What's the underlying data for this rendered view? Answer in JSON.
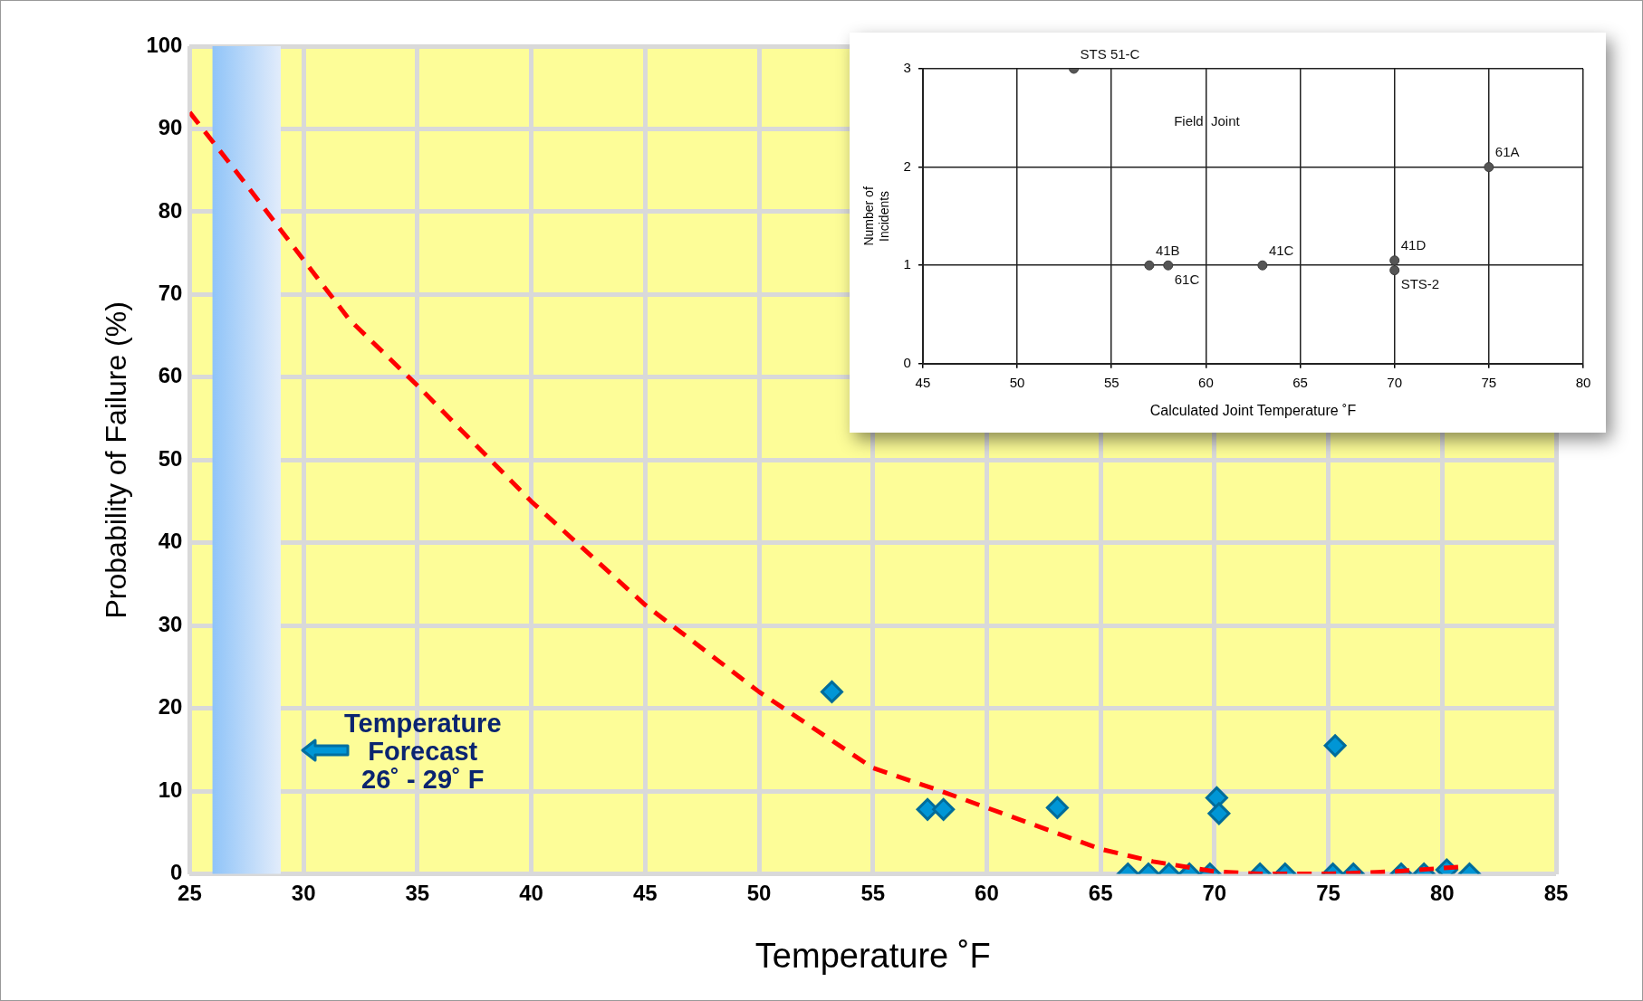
{
  "chart_data": [
    {
      "type": "scatter",
      "xlabel": "Temperature ˚F",
      "ylabel": "Probability of Failure (%)",
      "xlim": [
        25,
        85
      ],
      "xticks": [
        25,
        30,
        35,
        40,
        45,
        50,
        55,
        60,
        65,
        70,
        75,
        80,
        85
      ],
      "ylim": [
        0,
        100
      ],
      "yticks": [
        0,
        10,
        20,
        30,
        40,
        50,
        60,
        70,
        80,
        90,
        100
      ],
      "grid": true,
      "legend": false,
      "series": [
        {
          "color": "#0096d6",
          "marker": "diamond",
          "x": [
            53.2,
            57.4,
            58.1,
            63.1,
            70.1,
            70.2,
            75.3,
            66.2,
            67.1,
            68.0,
            68.9,
            69.8,
            72.0,
            73.1,
            75.2,
            76.1,
            78.2,
            79.2,
            80.2,
            81.2
          ],
          "values": [
            22,
            7.8,
            7.8,
            8,
            9.2,
            7.3,
            15.5,
            0,
            0,
            0,
            0,
            0,
            0,
            0,
            0,
            0,
            0,
            0,
            0.5,
            0
          ]
        },
        {
          "type": "line",
          "color": "#ff0000",
          "line_style": "dashed",
          "marker": "none",
          "x": [
            25,
            27,
            29.3,
            32,
            35,
            40,
            45,
            50,
            55,
            58,
            60,
            65,
            67.3,
            70,
            72,
            75,
            78,
            81
          ],
          "values": [
            92,
            85,
            76.7,
            67,
            59,
            45,
            32.5,
            22,
            12.8,
            10,
            8,
            3,
            1.5,
            0.3,
            0,
            0,
            0.3,
            0.9
          ]
        }
      ],
      "bands": [
        {
          "axis": "x",
          "from": 26,
          "to": 29,
          "color": "#90c4f8",
          "label": "Temperature\nForecast\n26˚ - 29˚ F"
        }
      ]
    },
    {
      "type": "scatter",
      "xlabel": "Calculated Joint Temperature ˚F",
      "ylabel": "Number of\nIncidents",
      "xlim": [
        45,
        80
      ],
      "xticks": [
        45,
        50,
        55,
        60,
        65,
        70,
        75,
        80
      ],
      "ylim": [
        0,
        3
      ],
      "yticks": [
        0,
        1,
        2,
        3
      ],
      "grid": true,
      "legend": false,
      "series": [
        {
          "color": "#555555",
          "marker": "circle",
          "x": [
            53,
            57,
            58,
            63,
            70,
            70,
            75
          ],
          "values": [
            3,
            1,
            1,
            1,
            1.05,
            0.95,
            2
          ]
        }
      ],
      "annotations": [
        {
          "text": "STS 51-C",
          "x": 53,
          "y": 3
        },
        {
          "text": "41B",
          "x": 57,
          "y": 1
        },
        {
          "text": "61C",
          "x": 58,
          "y": 1
        },
        {
          "text": "41C",
          "x": 63,
          "y": 1
        },
        {
          "text": "41D",
          "x": 70,
          "y": 1.05
        },
        {
          "text": "STS-2",
          "x": 70,
          "y": 0.95
        },
        {
          "text": "61A",
          "x": 75,
          "y": 2
        },
        "Field  Joint"
      ]
    }
  ]
}
